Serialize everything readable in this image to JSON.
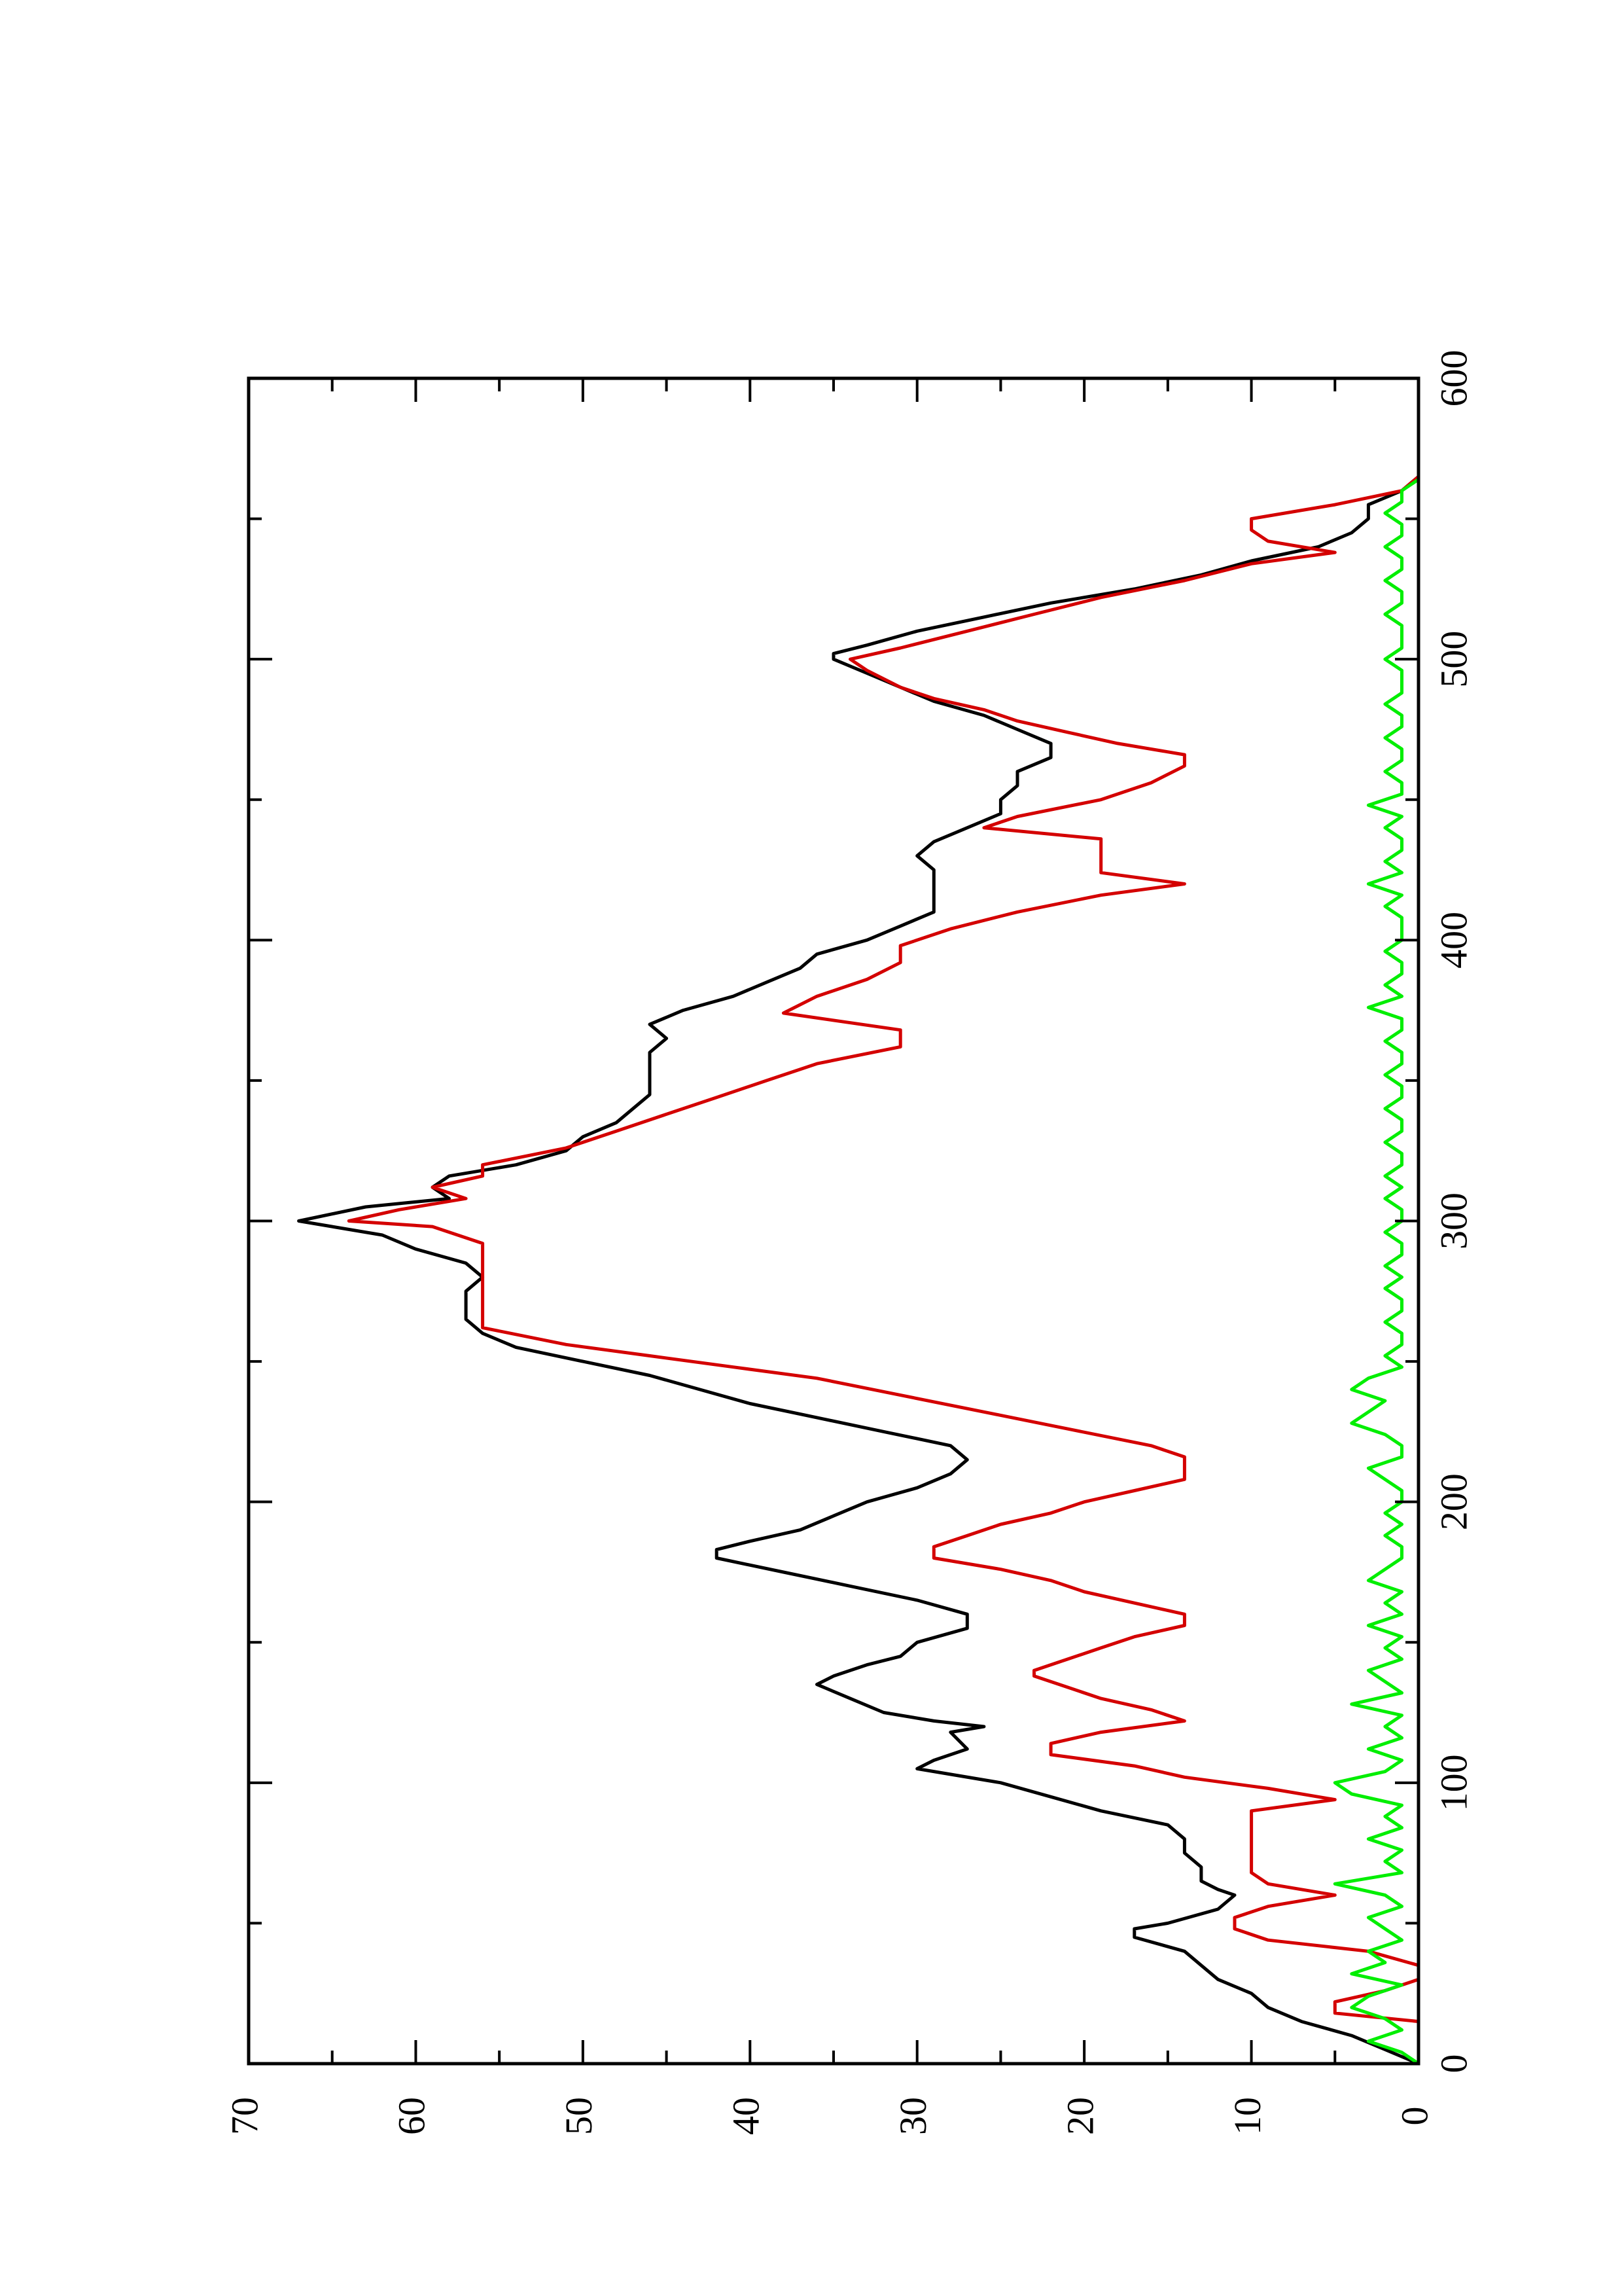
{
  "chart_data": {
    "type": "line",
    "title": "",
    "xlabel": "",
    "ylabel": "",
    "orientation": "rotated 90 degrees counter-clockwise (page in landscape)",
    "xlim": [
      0,
      600
    ],
    "ylim": [
      0,
      70
    ],
    "x_ticks": [
      "0",
      "100",
      "200",
      "300",
      "400",
      "500",
      "600"
    ],
    "y_ticks": [
      "0",
      "10",
      "20",
      "30",
      "40",
      "50",
      "60",
      "70"
    ],
    "grid": false,
    "legend": "none",
    "series": [
      {
        "color": "#000000",
        "x": [
          0,
          5,
          10,
          15,
          20,
          25,
          30,
          35,
          40,
          45,
          48,
          50,
          55,
          60,
          62,
          65,
          70,
          75,
          80,
          85,
          90,
          95,
          100,
          105,
          108,
          112,
          118,
          120,
          122,
          125,
          130,
          135,
          138,
          142,
          145,
          150,
          155,
          160,
          165,
          170,
          175,
          180,
          183,
          186,
          190,
          195,
          200,
          205,
          210,
          215,
          220,
          225,
          230,
          235,
          240,
          245,
          250,
          255,
          260,
          265,
          270,
          275,
          280,
          285,
          290,
          295,
          300,
          305,
          308,
          312,
          316,
          320,
          325,
          330,
          335,
          340,
          345,
          350,
          355,
          360,
          365,
          370,
          375,
          380,
          385,
          390,
          395,
          400,
          405,
          410,
          415,
          420,
          425,
          430,
          435,
          440,
          445,
          450,
          455,
          460,
          465,
          470,
          475,
          480,
          485,
          490,
          495,
          500,
          502,
          505,
          510,
          515,
          520,
          525,
          530,
          535,
          540,
          545,
          550,
          555,
          560,
          565
        ],
        "y": [
          0,
          2,
          4,
          7,
          9,
          10,
          12,
          13,
          14,
          17,
          17,
          15,
          12,
          11,
          12,
          13,
          13,
          14,
          14,
          15,
          19,
          22,
          25,
          30,
          29,
          27,
          28,
          26,
          29,
          32,
          34,
          36,
          35,
          33,
          31,
          30,
          27,
          27,
          30,
          34,
          38,
          42,
          42,
          40,
          37,
          35,
          33,
          30,
          28,
          27,
          28,
          32,
          36,
          40,
          43,
          46,
          50,
          54,
          56,
          57,
          57,
          57,
          56,
          57,
          60,
          62,
          67,
          63,
          58,
          59,
          58,
          54,
          51,
          50,
          48,
          47,
          46,
          46,
          46,
          46,
          45,
          46,
          44,
          41,
          39,
          37,
          36,
          33,
          31,
          29,
          29,
          29,
          29,
          30,
          29,
          27,
          25,
          25,
          24,
          24,
          22,
          22,
          24,
          26,
          29,
          31,
          33,
          35,
          35,
          33,
          30,
          26,
          22,
          17,
          13,
          10,
          6,
          4,
          3,
          3,
          1,
          0
        ]
      },
      {
        "color": "#d40000",
        "x": [
          0,
          15,
          18,
          22,
          26,
          30,
          35,
          40,
          44,
          48,
          52,
          56,
          60,
          64,
          68,
          75,
          82,
          90,
          94,
          98,
          102,
          106,
          110,
          114,
          118,
          122,
          126,
          130,
          134,
          138,
          140,
          144,
          148,
          152,
          156,
          160,
          164,
          168,
          172,
          176,
          180,
          184,
          188,
          192,
          196,
          200,
          204,
          208,
          212,
          216,
          220,
          226,
          232,
          238,
          244,
          248,
          252,
          256,
          262,
          268,
          274,
          280,
          286,
          292,
          298,
          300,
          304,
          308,
          312,
          316,
          320,
          326,
          332,
          338,
          344,
          350,
          356,
          362,
          368,
          374,
          380,
          386,
          392,
          398,
          404,
          410,
          416,
          420,
          424,
          430,
          436,
          440,
          444,
          450,
          456,
          462,
          466,
          470,
          474,
          478,
          482,
          486,
          490,
          496,
          500,
          504,
          510,
          516,
          522,
          528,
          534,
          538,
          542,
          546,
          550,
          555,
          560,
          565
        ],
        "y": [
          0,
          0,
          5,
          5,
          2,
          0,
          0,
          3,
          9,
          11,
          11,
          9,
          5,
          9,
          10,
          10,
          10,
          10,
          5,
          9,
          14,
          17,
          22,
          22,
          19,
          14,
          16,
          19,
          21,
          23,
          23,
          21,
          19,
          17,
          14,
          14,
          17,
          20,
          22,
          25,
          29,
          29,
          27,
          25,
          22,
          20,
          17,
          14,
          14,
          14,
          16,
          21,
          26,
          31,
          36,
          41,
          46,
          51,
          56,
          56,
          56,
          56,
          56,
          56,
          59,
          64,
          61,
          57,
          59,
          56,
          56,
          51,
          48,
          45,
          42,
          39,
          36,
          31,
          31,
          38,
          36,
          33,
          31,
          31,
          28,
          24,
          19,
          14,
          19,
          19,
          19,
          26,
          24,
          19,
          16,
          14,
          14,
          18,
          21,
          24,
          26,
          29,
          31,
          33,
          34,
          31,
          27,
          23,
          19,
          14,
          10,
          5,
          9,
          10,
          10,
          5,
          1,
          0
        ]
      },
      {
        "color": "#00ee00",
        "x": [
          0,
          4,
          8,
          12,
          16,
          20,
          24,
          28,
          32,
          36,
          40,
          44,
          48,
          52,
          56,
          60,
          64,
          68,
          72,
          76,
          80,
          84,
          88,
          92,
          96,
          100,
          104,
          108,
          112,
          116,
          120,
          124,
          128,
          132,
          136,
          140,
          144,
          148,
          152,
          156,
          160,
          164,
          168,
          172,
          176,
          180,
          184,
          188,
          192,
          196,
          200,
          204,
          208,
          212,
          216,
          220,
          224,
          228,
          232,
          236,
          240,
          244,
          248,
          252,
          256,
          260,
          264,
          268,
          272,
          276,
          280,
          284,
          288,
          292,
          296,
          300,
          304,
          308,
          312,
          316,
          320,
          324,
          328,
          332,
          336,
          340,
          344,
          348,
          352,
          356,
          360,
          364,
          368,
          372,
          376,
          380,
          384,
          388,
          392,
          396,
          400,
          404,
          408,
          412,
          416,
          420,
          424,
          428,
          432,
          436,
          440,
          444,
          448,
          452,
          456,
          460,
          464,
          468,
          472,
          476,
          480,
          484,
          488,
          492,
          496,
          500,
          504,
          508,
          512,
          516,
          520,
          524,
          528,
          532,
          536,
          540,
          544,
          548,
          552,
          556,
          560,
          564
        ],
        "y": [
          0,
          1,
          3,
          1,
          2,
          4,
          3,
          1,
          4,
          2,
          3,
          1,
          2,
          3,
          1,
          2,
          5,
          1,
          2,
          1,
          3,
          1,
          2,
          1,
          4,
          5,
          2,
          1,
          3,
          1,
          2,
          1,
          4,
          1,
          2,
          3,
          1,
          2,
          1,
          3,
          1,
          2,
          1,
          3,
          2,
          1,
          1,
          2,
          1,
          2,
          1,
          1,
          2,
          3,
          1,
          1,
          2,
          4,
          3,
          2,
          4,
          3,
          1,
          2,
          1,
          1,
          2,
          1,
          1,
          2,
          1,
          2,
          1,
          1,
          2,
          1,
          1,
          2,
          1,
          2,
          1,
          1,
          2,
          1,
          1,
          2,
          1,
          1,
          2,
          1,
          1,
          2,
          1,
          1,
          3,
          1,
          2,
          1,
          1,
          2,
          1,
          1,
          1,
          2,
          1,
          3,
          1,
          2,
          1,
          1,
          2,
          1,
          3,
          1,
          1,
          2,
          1,
          1,
          2,
          1,
          1,
          2,
          1,
          1,
          1,
          2,
          1,
          1,
          1,
          2,
          1,
          1,
          2,
          1,
          1,
          2,
          1,
          1,
          2,
          1,
          1,
          0
        ]
      }
    ]
  }
}
